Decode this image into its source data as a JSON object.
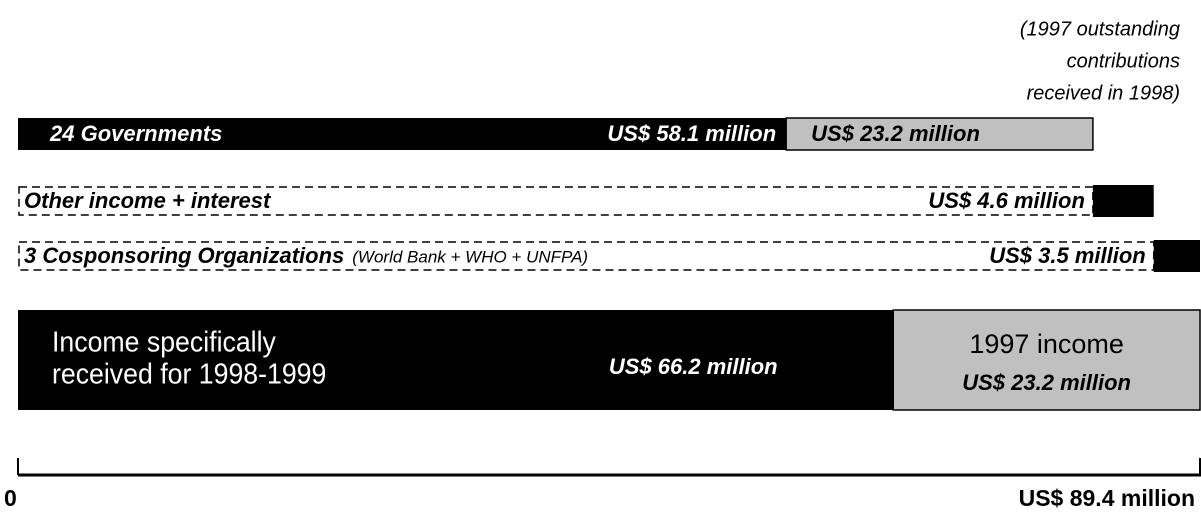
{
  "chart_data": {
    "type": "waterfall",
    "annotation": [
      "(1997 outstanding",
      "contributions",
      "received in 1998)"
    ],
    "xlim": [
      0,
      89.4
    ],
    "xticks": [
      0,
      {
        "value": 89.4,
        "label": "US$ 89.4 million"
      }
    ],
    "rows": [
      {
        "label": "24 Governments",
        "segments": [
          {
            "value": 58.1,
            "value_label": "US$ 58.1 million",
            "color": "#000000"
          },
          {
            "value": 23.2,
            "value_label": "US$ 23.2 million",
            "color": "#c0c0c0"
          }
        ]
      },
      {
        "label": "Other income + interest",
        "dashed_base": true,
        "segments": [
          {
            "value": 4.6,
            "value_label": "US$ 4.6 million",
            "color": "#000000"
          }
        ]
      },
      {
        "label": "3 Cosponsoring Organizations",
        "note": "(World Bank + WHO + UNFPA)",
        "dashed_base": true,
        "segments": [
          {
            "value": 3.5,
            "value_label": "US$ 3.5 million",
            "color": "#000000"
          }
        ]
      },
      {
        "label": [
          "Income specifically",
          "received for 1998-1999"
        ],
        "segments": [
          {
            "value": 66.2,
            "value_label": "US$ 66.2 million",
            "color": "#000000"
          },
          {
            "value": 23.2,
            "value_label": "US$ 23.2 million",
            "color": "#c0c0c0",
            "header": "1997 income"
          }
        ]
      }
    ]
  }
}
